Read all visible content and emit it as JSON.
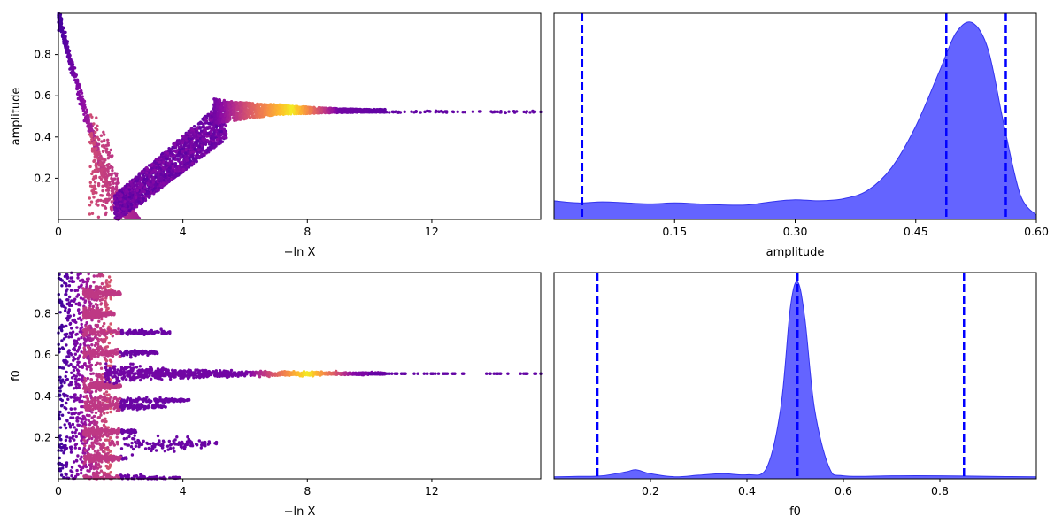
{
  "chart_data": [
    {
      "type": "scatter",
      "panel": "top-left",
      "xlabel": "−ln X",
      "ylabel": "amplitude",
      "xlim": [
        0,
        15.5
      ],
      "ylim": [
        0,
        1.0
      ],
      "xticks": [
        "0",
        "4",
        "8",
        "12"
      ],
      "xtick_values": [
        0,
        4,
        8,
        12
      ],
      "yticks": [
        "0.2",
        "0.4",
        "0.6",
        "0.8"
      ],
      "ytick_values": [
        0.2,
        0.4,
        0.6,
        0.8
      ],
      "colormap": "plasma",
      "description_points": [
        {
          "x": 0.0,
          "y": 0.99
        },
        {
          "x": 0.5,
          "y": 0.72
        },
        {
          "x": 1.0,
          "y": 0.45
        },
        {
          "x": 1.5,
          "y": 0.08
        },
        {
          "x": 2.0,
          "y": 0.1
        },
        {
          "x": 3.0,
          "y": 0.28
        },
        {
          "x": 4.0,
          "y": 0.4
        },
        {
          "x": 5.0,
          "y": 0.52
        },
        {
          "x": 6.0,
          "y": 0.53
        },
        {
          "x": 7.0,
          "y": 0.52
        },
        {
          "x": 8.0,
          "y": 0.53
        },
        {
          "x": 10.0,
          "y": 0.53
        },
        {
          "x": 12.0,
          "y": 0.52
        },
        {
          "x": 14.0,
          "y": 0.52
        },
        {
          "x": 15.5,
          "y": 0.52
        }
      ]
    },
    {
      "type": "area",
      "panel": "top-right",
      "xlabel": "amplitude",
      "ylabel": "",
      "xlim": [
        0.0,
        0.6
      ],
      "xticks": [
        "0.15",
        "0.30",
        "0.45",
        "0.60"
      ],
      "xtick_values": [
        0.15,
        0.3,
        0.45,
        0.6
      ],
      "fill_color": "#6464ff",
      "line_color": "#0000ff",
      "x": [
        0.0,
        0.03,
        0.06,
        0.09,
        0.12,
        0.15,
        0.18,
        0.21,
        0.24,
        0.27,
        0.3,
        0.33,
        0.36,
        0.39,
        0.42,
        0.45,
        0.48,
        0.5,
        0.52,
        0.54,
        0.56,
        0.58,
        0.6
      ],
      "density": [
        0.09,
        0.08,
        0.085,
        0.08,
        0.075,
        0.08,
        0.075,
        0.07,
        0.07,
        0.085,
        0.095,
        0.09,
        0.1,
        0.14,
        0.25,
        0.45,
        0.72,
        0.9,
        0.95,
        0.82,
        0.45,
        0.12,
        0.02
      ],
      "quantile_lines": [
        0.035,
        0.488,
        0.562
      ]
    },
    {
      "type": "scatter",
      "panel": "bottom-left",
      "xlabel": "−ln X",
      "ylabel": "f0",
      "xlim": [
        0,
        15.5
      ],
      "ylim": [
        0,
        1.0
      ],
      "xticks": [
        "0",
        "4",
        "8",
        "12"
      ],
      "xtick_values": [
        0,
        4,
        8,
        12
      ],
      "yticks": [
        "0.2",
        "0.4",
        "0.6",
        "0.8"
      ],
      "ytick_values": [
        0.2,
        0.4,
        0.6,
        0.8
      ],
      "colormap": "plasma",
      "description_points": [
        {
          "x": 0.5,
          "y": 0.5
        },
        {
          "x": 3.5,
          "y": 0.71
        },
        {
          "x": 3.2,
          "y": 0.61
        },
        {
          "x": 4.0,
          "y": 0.38
        },
        {
          "x": 5.0,
          "y": 0.17
        },
        {
          "x": 3.8,
          "y": 0.0
        },
        {
          "x": 8.0,
          "y": 0.51
        },
        {
          "x": 15.5,
          "y": 0.51
        }
      ]
    },
    {
      "type": "area",
      "panel": "bottom-right",
      "xlabel": "f0",
      "ylabel": "",
      "xlim": [
        0.0,
        1.0
      ],
      "xticks": [
        "0.2",
        "0.4",
        "0.6",
        "0.8"
      ],
      "xtick_values": [
        0.2,
        0.4,
        0.6,
        0.8
      ],
      "fill_color": "#6464ff",
      "line_color": "#0000ff",
      "x": [
        0.0,
        0.05,
        0.1,
        0.15,
        0.17,
        0.2,
        0.25,
        0.3,
        0.35,
        0.4,
        0.44,
        0.47,
        0.49,
        0.505,
        0.52,
        0.54,
        0.57,
        0.6,
        0.7,
        0.8,
        0.9,
        1.0
      ],
      "density": [
        0.01,
        0.012,
        0.015,
        0.035,
        0.045,
        0.025,
        0.01,
        0.018,
        0.025,
        0.02,
        0.05,
        0.35,
        0.85,
        0.98,
        0.8,
        0.35,
        0.06,
        0.015,
        0.015,
        0.015,
        0.012,
        0.01
      ],
      "quantile_lines": [
        0.09,
        0.505,
        0.85
      ]
    }
  ]
}
